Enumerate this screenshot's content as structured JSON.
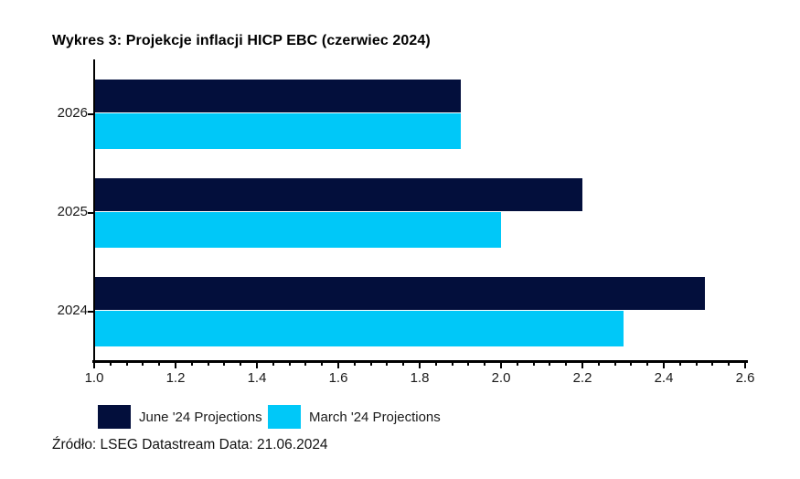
{
  "title": "Wykres 3: Projekcje inflacji HICP EBC (czerwiec 2024)",
  "source_line": "Źródło: LSEG Datastream Data: 21.06.2024",
  "colors": {
    "axis": "#000000",
    "background": "#ffffff",
    "text": "#1a1a1a",
    "june_navy": "#030F3C",
    "march_cyan": "#00C8F8"
  },
  "chart_data": {
    "type": "bar",
    "orientation": "horizontal",
    "title": "Wykres 3: Projekcje inflacji HICP EBC (czerwiec 2024)",
    "categories": [
      "2026",
      "2025",
      "2024"
    ],
    "series": [
      {
        "name": "June '24 Projections",
        "color": "#030F3C",
        "values": [
          1.9,
          2.2,
          2.5
        ]
      },
      {
        "name": "March '24 Projections",
        "color": "#00C8F8",
        "values": [
          1.9,
          2.0,
          2.3
        ]
      }
    ],
    "xlabel": "",
    "ylabel": "",
    "xlim": [
      1.0,
      2.6
    ],
    "xticks": [
      1.0,
      1.2,
      1.4,
      1.6,
      1.8,
      2.0,
      2.2,
      2.4,
      2.6
    ],
    "minor_tick_step": 0.04,
    "grid": false,
    "legend_position": "bottom"
  }
}
